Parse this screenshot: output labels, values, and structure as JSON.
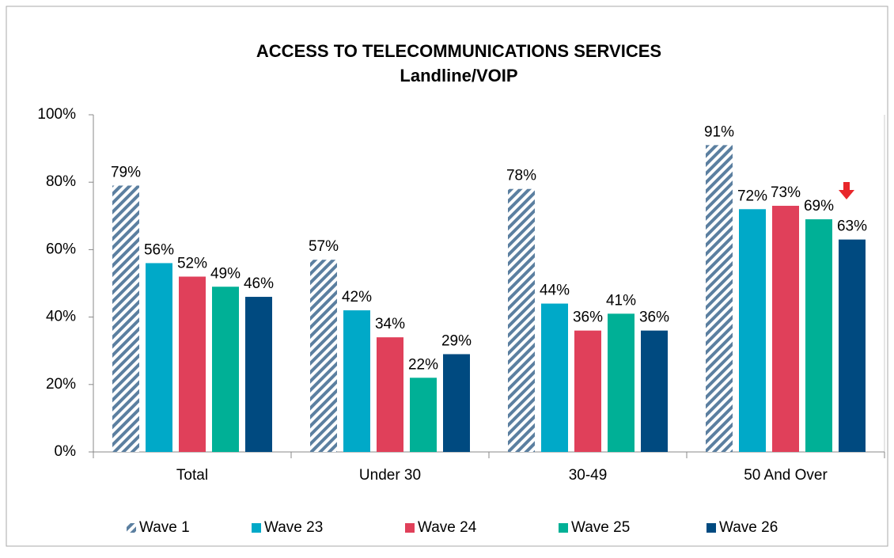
{
  "chart_data": {
    "type": "bar",
    "title": "ACCESS TO TELECOMMUNICATIONS SERVICES",
    "subtitle": "Landline/VOIP",
    "categories": [
      "Total",
      "Under 30",
      "30-49",
      "50 And Over"
    ],
    "series": [
      {
        "name": "Wave 1",
        "color": "#5b7fa0",
        "pattern": "hatch",
        "values": [
          79,
          57,
          78,
          91
        ],
        "value_labels": [
          "79%",
          "57%",
          "78%",
          "91%"
        ]
      },
      {
        "name": "Wave 23",
        "color": "#00a9c8",
        "values": [
          56,
          42,
          44,
          72
        ],
        "value_labels": [
          "56%",
          "42%",
          "44%",
          "72%"
        ]
      },
      {
        "name": "Wave 24",
        "color": "#e0405a",
        "values": [
          52,
          34,
          36,
          73
        ],
        "value_labels": [
          "52%",
          "34%",
          "36%",
          "73%"
        ]
      },
      {
        "name": "Wave 25",
        "color": "#00b096",
        "values": [
          49,
          22,
          41,
          69
        ],
        "value_labels": [
          "49%",
          "22%",
          "41%",
          "69%"
        ]
      },
      {
        "name": "Wave 26",
        "color": "#004a80",
        "values": [
          46,
          29,
          36,
          63
        ],
        "value_labels": [
          "46%",
          "29%",
          "36%",
          "63%"
        ]
      }
    ],
    "ylim": [
      0,
      100
    ],
    "yticks": [
      {
        "value": 0,
        "label": "0%"
      },
      {
        "value": 20,
        "label": "20%"
      },
      {
        "value": 40,
        "label": "40%"
      },
      {
        "value": 60,
        "label": "60%"
      },
      {
        "value": 80,
        "label": "80%"
      },
      {
        "value": 100,
        "label": "100%"
      }
    ],
    "grid": false,
    "legend": "bottom"
  }
}
